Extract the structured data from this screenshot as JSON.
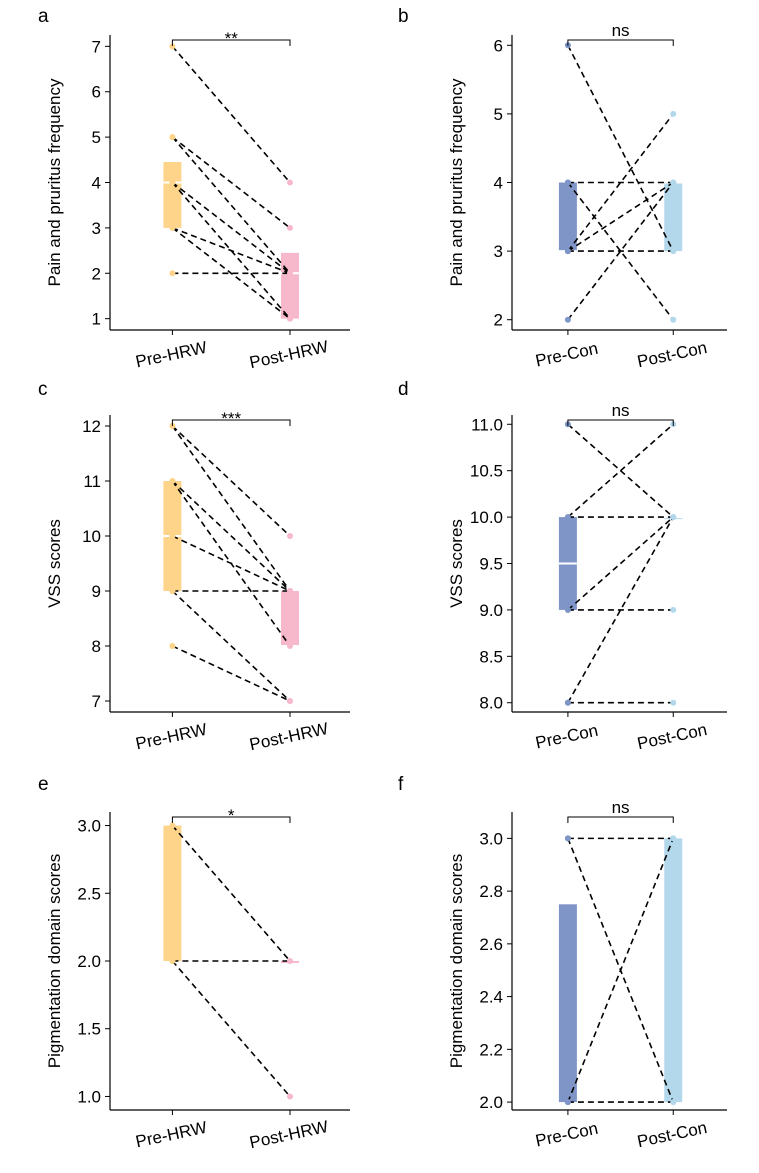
{
  "chart_data": [
    {
      "type": "paired",
      "panel": "a",
      "ylabel": "Pain and pruritus frequency",
      "categories": [
        "Pre-HRW",
        "Post-HRW"
      ],
      "significance": "**",
      "ylim": [
        0.75,
        7.25
      ],
      "yticks": [
        1,
        2,
        3,
        4,
        5,
        6,
        7
      ],
      "boxes": [
        {
          "color": "#fdd48a",
          "q1": 3,
          "median": 4,
          "q3": 4.45
        },
        {
          "color": "#f8b8cb",
          "q1": 1,
          "median": 2,
          "q3": 2.45
        }
      ],
      "pairs": [
        [
          7,
          4
        ],
        [
          5,
          3
        ],
        [
          5,
          2
        ],
        [
          4,
          2
        ],
        [
          4,
          1
        ],
        [
          3,
          2
        ],
        [
          3,
          1
        ],
        [
          2,
          2
        ]
      ]
    },
    {
      "type": "paired",
      "panel": "b",
      "ylabel": "Pain and pruritus frequency",
      "categories": [
        "Pre-Con",
        "Post-Con"
      ],
      "significance": "ns",
      "ylim": [
        1.85,
        6.15
      ],
      "yticks": [
        2,
        3,
        4,
        5,
        6
      ],
      "boxes": [
        {
          "color": "#7f95c8",
          "q1": 3,
          "median": 3,
          "q3": 4
        },
        {
          "color": "#b3d8ec",
          "q1": 3,
          "median": 4,
          "q3": 4
        }
      ],
      "pairs": [
        [
          6,
          3
        ],
        [
          4,
          4
        ],
        [
          4,
          2
        ],
        [
          3,
          4
        ],
        [
          3,
          5
        ],
        [
          3,
          3
        ],
        [
          2,
          4
        ]
      ]
    },
    {
      "type": "paired",
      "panel": "c",
      "ylabel": "VSS scores",
      "categories": [
        "Pre-HRW",
        "Post-HRW"
      ],
      "significance": "***",
      "ylim": [
        6.8,
        12.2
      ],
      "yticks": [
        7,
        8,
        9,
        10,
        11,
        12
      ],
      "boxes": [
        {
          "color": "#fdd48a",
          "q1": 9,
          "median": 10,
          "q3": 11
        },
        {
          "color": "#f8b8cb",
          "q1": 8,
          "median": 8,
          "q3": 9
        }
      ],
      "pairs": [
        [
          12,
          10
        ],
        [
          12,
          9
        ],
        [
          11,
          9
        ],
        [
          11,
          8
        ],
        [
          10,
          9
        ],
        [
          9,
          9
        ],
        [
          9,
          7
        ],
        [
          8,
          7
        ]
      ]
    },
    {
      "type": "paired",
      "panel": "d",
      "ylabel": "VSS scores",
      "categories": [
        "Pre-Con",
        "Post-Con"
      ],
      "significance": "ns",
      "ylim": [
        7.9,
        11.1
      ],
      "yticks": [
        {
          "value": 8,
          "label": "8.0"
        },
        8.5,
        {
          "value": 9,
          "label": "9.0"
        },
        9.5,
        {
          "value": 10,
          "label": "10.0"
        },
        10.5,
        {
          "value": 11,
          "label": "11.0"
        }
      ],
      "boxes": [
        {
          "color": "#7f95c8",
          "q1": 9,
          "median": 9.5,
          "q3": 10
        },
        {
          "color": "#b3d8ec",
          "q1": 10,
          "median": 10,
          "q3": 10
        }
      ],
      "pairs": [
        [
          11,
          10
        ],
        [
          10,
          11
        ],
        [
          10,
          10
        ],
        [
          9,
          10
        ],
        [
          9,
          9
        ],
        [
          8,
          10
        ],
        [
          8,
          8
        ]
      ]
    },
    {
      "type": "paired",
      "panel": "e",
      "ylabel": "Pigmentation domain scores",
      "categories": [
        "Pre-HRW",
        "Post-HRW"
      ],
      "significance": "*",
      "ylim": [
        0.9,
        3.1
      ],
      "yticks": [
        {
          "value": 1,
          "label": "1.0"
        },
        1.5,
        {
          "value": 2,
          "label": "2.0"
        },
        2.5,
        {
          "value": 3,
          "label": "3.0"
        }
      ],
      "boxes": [
        {
          "color": "#fdd48a",
          "q1": 2,
          "q3": 3
        },
        {
          "color": "#f8b8cb",
          "q1": 2,
          "q3": 2
        }
      ],
      "pairs": [
        [
          3,
          2
        ],
        [
          2,
          2
        ],
        [
          2,
          1
        ]
      ]
    },
    {
      "type": "paired",
      "panel": "f",
      "ylabel": "Pigmentation domain scores",
      "categories": [
        "Pre-Con",
        "Post-Con"
      ],
      "significance": "ns",
      "ylim": [
        1.97,
        3.1
      ],
      "yticks": [
        {
          "value": 2,
          "label": "2.0"
        },
        2.2,
        2.4,
        2.6,
        2.8,
        {
          "value": 3,
          "label": "3.0"
        }
      ],
      "boxes": [
        {
          "color": "#7f95c8",
          "q1": 2,
          "q3": 2.75
        },
        {
          "color": "#b3d8ec",
          "q1": 2,
          "q3": 3
        }
      ],
      "pairs": [
        [
          3,
          3
        ],
        [
          3,
          2
        ],
        [
          2,
          3
        ],
        [
          2,
          2
        ]
      ]
    }
  ]
}
